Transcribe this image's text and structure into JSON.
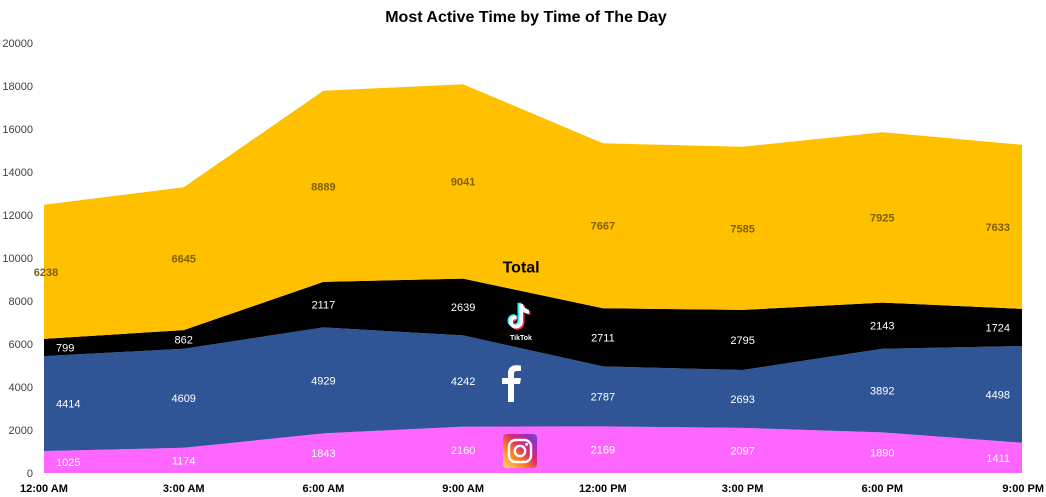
{
  "chart_data": {
    "type": "area",
    "stacked": true,
    "title": "Most Active Time by Time of The Day",
    "xlabel": "",
    "ylabel": "",
    "categories": [
      "12:00 AM",
      "3:00 AM",
      "6:00 AM",
      "9:00 AM",
      "12:00 PM",
      "3:00 PM",
      "6:00 PM",
      "9:00 PM"
    ],
    "ylim": [
      0,
      20000
    ],
    "yticks": [
      "0",
      "2000",
      "4000",
      "6000",
      "8000",
      "10000",
      "12000",
      "14000",
      "16000",
      "18000",
      "20000"
    ],
    "grid": false,
    "legend": "none",
    "series": [
      {
        "name": "",
        "icon": "instagram-icon",
        "color": "#ff66ff",
        "label_color": "#ffffff",
        "values": [
          1025,
          1174,
          1843,
          2160,
          2169,
          2097,
          1890,
          1411
        ]
      },
      {
        "name": "",
        "icon": "facebook-icon",
        "color": "#2f5597",
        "label_color": "#ffffff",
        "values": [
          4414,
          4609,
          4929,
          4242,
          2787,
          2693,
          3892,
          4498
        ]
      },
      {
        "name": "",
        "icon": "tiktok-icon",
        "color": "#000000",
        "label_color": "#ffffff",
        "values": [
          799,
          862,
          2117,
          2639,
          2711,
          2795,
          2143,
          1724
        ]
      },
      {
        "name": "Total",
        "color": "#ffc000",
        "label_color": "#7f6000",
        "values": [
          6238,
          6645,
          8889,
          9041,
          7667,
          7585,
          7925,
          7633
        ]
      }
    ]
  }
}
